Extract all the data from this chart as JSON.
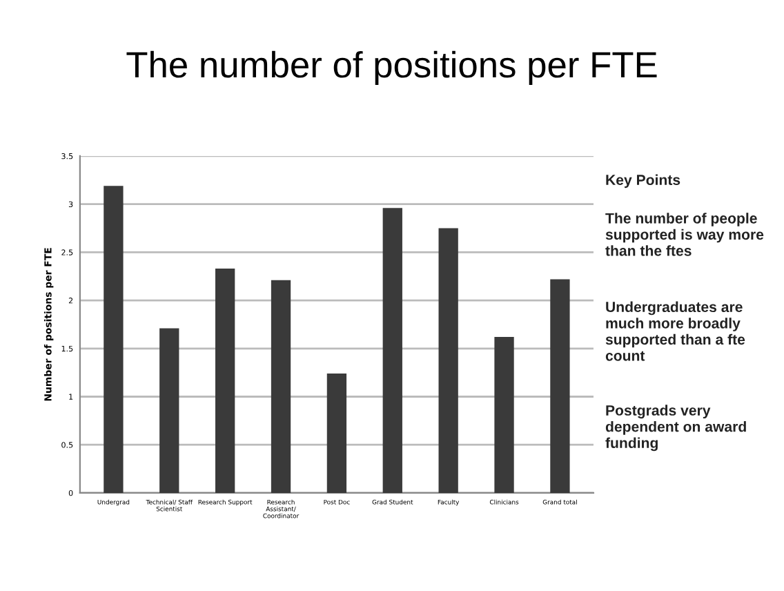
{
  "chart_data": {
    "type": "bar",
    "title": "The number of positions per FTE",
    "ylabel": "Number of positions per FTE",
    "categories": [
      "Undergrad",
      "Technical/ Staff\nScientist",
      "Research Support",
      "Research\nAssistant/\nCoordinator",
      "Post Doc",
      "Grad Student",
      "Faculty",
      "Clinicians",
      "Grand total"
    ],
    "values": [
      3.19,
      1.71,
      2.33,
      2.21,
      1.24,
      2.96,
      2.75,
      1.62,
      2.22
    ],
    "color": "#3a3a3a",
    "ylim": [
      0,
      3.5
    ],
    "yticks": [
      0,
      0.5,
      1,
      1.5,
      2,
      2.5,
      3,
      3.5
    ],
    "grid": "y",
    "annotations": [
      "Key Points",
      "The number of people\nsupported is way more\nthan the ftes",
      "Undergraduates are\nmuch more broadly\nsupported than a fte\ncount",
      "Postgrads very\ndependent on award\nfunding"
    ]
  }
}
